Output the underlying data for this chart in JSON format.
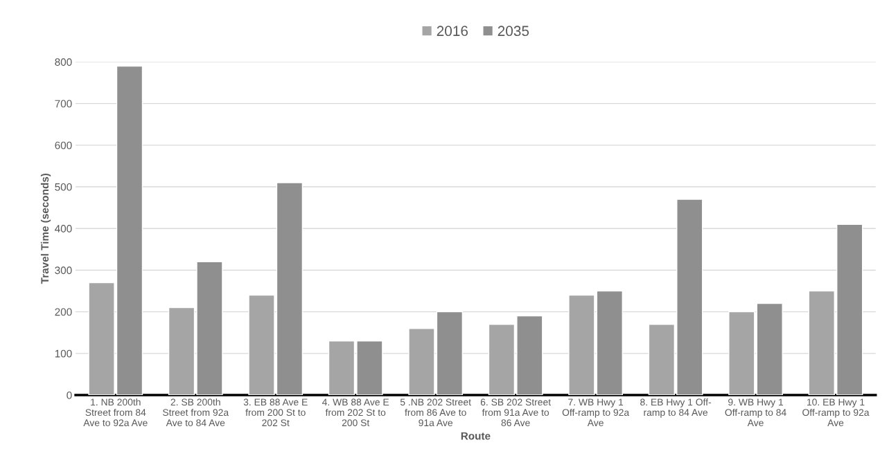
{
  "chart_data": {
    "type": "bar",
    "xlabel": "Route",
    "ylabel": "Travel Time (seconds)",
    "categories": [
      "1. NB 200th\nStreet from 84\nAve to 92a Ave",
      "2. SB 200th\nStreet from 92a\nAve to 84 Ave",
      "3. EB 88 Ave E\nfrom 200 St to\n202 St",
      "4. WB 88 Ave E\nfrom 202 St to\n200 St",
      "5 .NB 202 Street\nfrom 86 Ave to\n91a Ave",
      "6. SB 202 Street\nfrom 91a Ave to\n86 Ave",
      "7. WB Hwy 1\nOff-ramp to 92a\nAve",
      "8. EB Hwy 1 Off-\nramp to 84 Ave",
      "9. WB Hwy 1\nOff-ramp to 84\nAve",
      "10. EB Hwy 1\nOff-ramp to 92a\nAve"
    ],
    "series": [
      {
        "name": "2016",
        "color": "#a5a5a5",
        "values": [
          270,
          210,
          240,
          130,
          160,
          170,
          240,
          170,
          200,
          250
        ]
      },
      {
        "name": "2035",
        "color": "#8f8f8f",
        "values": [
          790,
          320,
          510,
          130,
          200,
          190,
          250,
          470,
          220,
          410
        ]
      }
    ],
    "ylim": [
      0,
      800
    ],
    "yticks": [
      0,
      100,
      200,
      300,
      400,
      500,
      600,
      700,
      800
    ],
    "grid": "y",
    "legend": "top"
  }
}
